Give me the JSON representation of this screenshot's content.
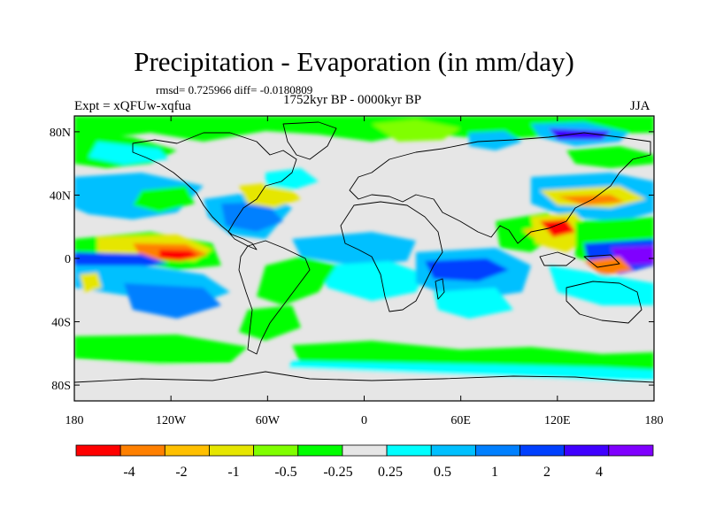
{
  "title": "Precipitation - Evaporation (in mm/day)",
  "stats": "rmsd= 0.725966 diff= -0.0180809",
  "period": "1752kyr BP - 0000kyr BP",
  "experiment": "Expt = xQFUw-xqfua",
  "season": "JJA",
  "axes": {
    "lon_ticks": [
      "180",
      "120W",
      "60W",
      "0",
      "60E",
      "120E",
      "180"
    ],
    "lat_ticks": [
      "80N",
      "40N",
      "0",
      "40S",
      "80S"
    ]
  },
  "colorbar": {
    "colors": [
      "#ff0000",
      "#ff8000",
      "#ffc000",
      "#e6e600",
      "#80ff00",
      "#00ff00",
      "#e6e6e6",
      "#00ffff",
      "#00c0ff",
      "#0080ff",
      "#0040ff",
      "#4000ff",
      "#8000ff"
    ],
    "labels": [
      "-4",
      "-2",
      "-1",
      "-0.5",
      "-0.25",
      "0.25",
      "0.5",
      "1",
      "2",
      "4"
    ]
  },
  "colors": {
    "background": "#e6e6e6",
    "coastline": "#000000"
  }
}
